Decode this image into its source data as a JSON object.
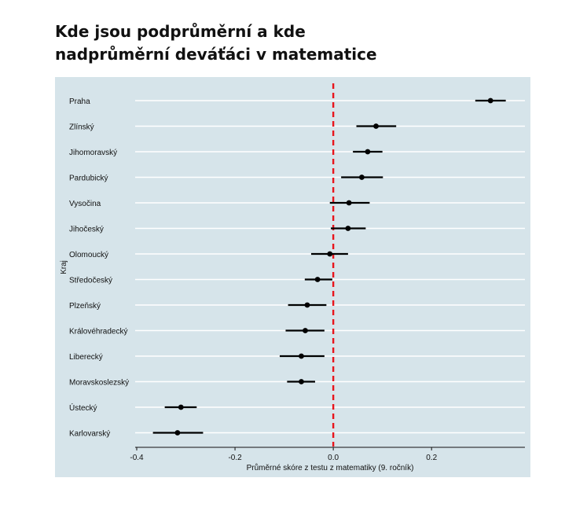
{
  "title_lines": [
    "Kde jsou podprůměrní a kde",
    "nadprůměrní deváťáci v matematice"
  ],
  "colors": {
    "panel_background": "#d6e4ea",
    "gridline": "#ffffff",
    "point": "#000000",
    "reference_line": "#e8141c"
  },
  "chart_data": {
    "type": "scatter",
    "subtype": "dot-and-whisker",
    "title": "Kde jsou podprůměrní a kde nadprůměrní deváťáci v matematice",
    "xlabel": "Průměrné skóre z testu z matematiky (9. ročník)",
    "ylabel": "Kraj",
    "xlim": [
      -0.4,
      0.39
    ],
    "xticks": [
      -0.4,
      -0.2,
      0.0,
      0.2
    ],
    "xtick_labels": [
      "-0.4",
      "-0.2",
      "0.0",
      "0.2"
    ],
    "reference_line": 0,
    "grid": "horizontal",
    "categories": [
      "Praha",
      "Zlínský",
      "Jihomoravský",
      "Pardubický",
      "Vysočina",
      "Jihočeský",
      "Olomoucký",
      "Středočeský",
      "Plzeňský",
      "Královéhradecký",
      "Liberecký",
      "Moravskoslezský",
      "Ústecký",
      "Karlovarský"
    ],
    "values": [
      0.32,
      0.087,
      0.07,
      0.058,
      0.032,
      0.03,
      -0.007,
      -0.032,
      -0.053,
      -0.057,
      -0.065,
      -0.065,
      -0.31,
      -0.317
    ],
    "lower": [
      0.289,
      0.047,
      0.04,
      0.016,
      -0.007,
      -0.005,
      -0.045,
      -0.058,
      -0.092,
      -0.097,
      -0.109,
      -0.094,
      -0.343,
      -0.367
    ],
    "upper": [
      0.351,
      0.128,
      0.1,
      0.101,
      0.074,
      0.066,
      0.03,
      -0.002,
      -0.014,
      -0.018,
      -0.018,
      -0.037,
      -0.278,
      -0.265
    ]
  }
}
